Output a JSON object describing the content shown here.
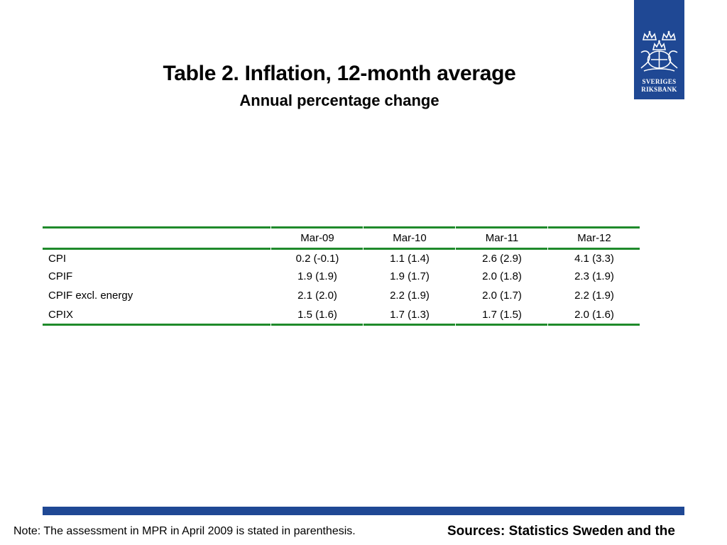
{
  "title": "Table 2. Inflation, 12-month average",
  "subtitle": "Annual percentage change",
  "logo": {
    "line1": "SVERIGES",
    "line2": "RIKSBANK",
    "icon": "riksbank-crown-emblem",
    "color": "#1f4894"
  },
  "table": {
    "columns": [
      "Mar-09",
      "Mar-10",
      "Mar-11",
      "Mar-12"
    ],
    "rows": [
      {
        "label": "CPI",
        "values": [
          "0.2 (-0.1)",
          "1.1 (1.4)",
          "2.6 (2.9)",
          "4.1 (3.3)"
        ]
      },
      {
        "label": "CPIF",
        "values": [
          "1.9 (1.9)",
          "1.9 (1.7)",
          "2.0 (1.8)",
          "2.3 (1.9)"
        ]
      },
      {
        "label": "CPIF excl. energy",
        "values": [
          "2.1 (2.0)",
          "2.2 (1.9)",
          "2.0 (1.7)",
          "2.2 (1.9)"
        ]
      },
      {
        "label": "CPIX",
        "values": [
          "1.5 (1.6)",
          "1.7 (1.3)",
          "1.7 (1.5)",
          "2.0 (1.6)"
        ]
      }
    ],
    "rule_color": "#1f8a2b"
  },
  "footer": {
    "note": "Note: The assessment in MPR in April 2009 is stated in parenthesis.",
    "sources": "Sources: Statistics Sweden and the",
    "bar_color": "#1f4894"
  }
}
